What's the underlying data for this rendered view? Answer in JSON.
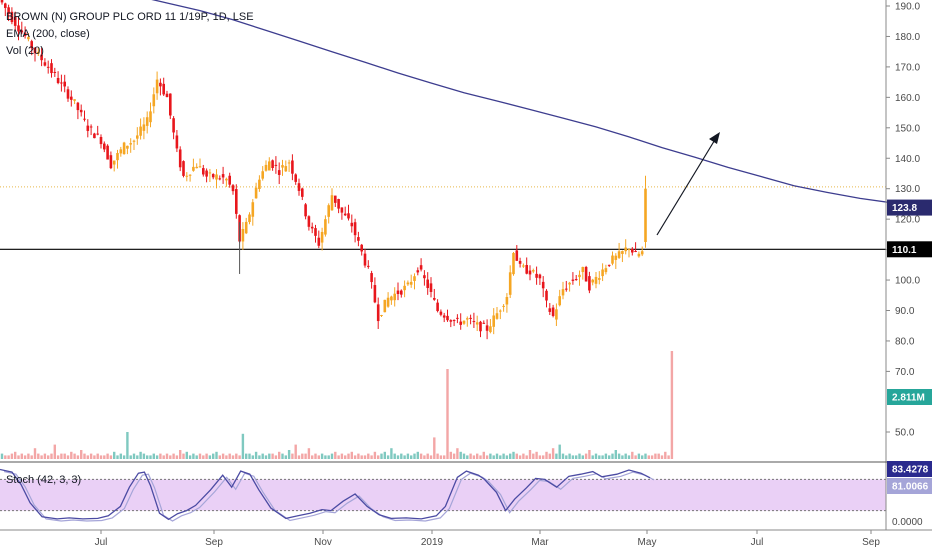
{
  "legend": {
    "title": "BROWN (N) GROUP PLC ORD 11 1/19P, 1D, LSE",
    "ema": "EMA (200, close)",
    "vol": "Vol (20)",
    "stoch": "Stoch (42, 3, 3)"
  },
  "tags": {
    "ema": "123.8",
    "hline": "110.1",
    "volume": "2.811M",
    "stoch_k": "83.4278",
    "stoch_d": "81.0066",
    "stoch_zero": "0.0000"
  },
  "colors": {
    "up": "#f5a623",
    "down": "#e8161c",
    "ema": "#3d3d8f",
    "vol_up": "#7fc9c0",
    "vol_down": "#f3a6a6",
    "stoch_bg": "#e6c8f5",
    "stoch_k": "#4b4ba3",
    "stoch_d": "#a5a5d8",
    "dotted": "#e8b84a",
    "hline": "#000000",
    "arrow": "#131722"
  },
  "chart_data": {
    "type": "candlestick",
    "x_ticks": [
      "Jul",
      "Sep",
      "Nov",
      "2019",
      "Mar",
      "May",
      "Jul",
      "Sep"
    ],
    "price_axis": {
      "ticks": [
        190,
        180,
        170,
        160,
        150,
        140,
        130,
        120,
        110,
        100,
        90,
        80,
        70
      ],
      "tick_labels": [
        "190.0",
        "180.0",
        "170.0",
        "160.0",
        "150.0",
        "140.0",
        "130.0",
        "120.0",
        "110.0",
        "100.0",
        "90.0",
        "80.0",
        "70.0"
      ],
      "range": [
        40,
        193
      ]
    },
    "volume_axis": {
      "ticks": [
        50
      ],
      "tick_labels": [
        "50.0"
      ]
    },
    "stoch_axis": {
      "range": [
        0,
        100
      ],
      "ticks": [
        0
      ],
      "tick_labels": [
        "0.0000"
      ]
    },
    "horizontal_line": 110.1,
    "dotted_line": 130.6,
    "ema_path": [
      [
        0,
        207
      ],
      [
        10,
        203
      ],
      [
        20,
        199
      ],
      [
        30,
        196
      ],
      [
        40,
        193.5
      ],
      [
        50,
        191
      ],
      [
        60,
        188.5
      ],
      [
        70,
        185.5
      ],
      [
        80,
        182
      ],
      [
        90,
        178.5
      ],
      [
        100,
        175
      ],
      [
        110,
        171.5
      ],
      [
        120,
        168
      ],
      [
        130,
        164.7
      ],
      [
        140,
        161.5
      ],
      [
        150,
        158.8
      ],
      [
        160,
        156
      ],
      [
        170,
        153.2
      ],
      [
        180,
        150.3
      ],
      [
        190,
        147
      ],
      [
        200,
        143.5
      ],
      [
        210,
        140.3
      ],
      [
        220,
        137
      ],
      [
        230,
        134
      ],
      [
        240,
        131
      ],
      [
        250,
        128.8
      ],
      [
        260,
        126.8
      ],
      [
        270,
        125.3
      ],
      [
        280,
        124.4
      ],
      [
        288,
        123.8
      ]
    ],
    "ohlc_anchors": [
      [
        0,
        191
      ],
      [
        3,
        186
      ],
      [
        7,
        180
      ],
      [
        10,
        175
      ],
      [
        14,
        170
      ],
      [
        18,
        164
      ],
      [
        22,
        158
      ],
      [
        26,
        150
      ],
      [
        30,
        146
      ],
      [
        33,
        138
      ],
      [
        37,
        144
      ],
      [
        40,
        146
      ],
      [
        44,
        152
      ],
      [
        47,
        166
      ],
      [
        50,
        160
      ],
      [
        53,
        142
      ],
      [
        55,
        134
      ],
      [
        59,
        138
      ],
      [
        62,
        134
      ],
      [
        65,
        134
      ],
      [
        68,
        133
      ],
      [
        70,
        129
      ],
      [
        72,
        113
      ],
      [
        74,
        118
      ],
      [
        76,
        126
      ],
      [
        78,
        134
      ],
      [
        81,
        139
      ],
      [
        84,
        136
      ],
      [
        87,
        139
      ],
      [
        90,
        130
      ],
      [
        93,
        118
      ],
      [
        96,
        112
      ],
      [
        100,
        128
      ],
      [
        103,
        122
      ],
      [
        106,
        118
      ],
      [
        108,
        112
      ],
      [
        111,
        103
      ],
      [
        114,
        88
      ],
      [
        117,
        94
      ],
      [
        120,
        96
      ],
      [
        123,
        98
      ],
      [
        126,
        104
      ],
      [
        129,
        98
      ],
      [
        132,
        90
      ],
      [
        135,
        88
      ],
      [
        138,
        86
      ],
      [
        141,
        87
      ],
      [
        144,
        85
      ],
      [
        147,
        84
      ],
      [
        150,
        89
      ],
      [
        153,
        95
      ],
      [
        155,
        110
      ],
      [
        157,
        104
      ],
      [
        160,
        103
      ],
      [
        163,
        100
      ],
      [
        165,
        92
      ],
      [
        167,
        88
      ],
      [
        170,
        97
      ],
      [
        173,
        100
      ],
      [
        176,
        103
      ],
      [
        178,
        98
      ],
      [
        181,
        102
      ],
      [
        184,
        106
      ],
      [
        187,
        108
      ],
      [
        190,
        111
      ],
      [
        192,
        108
      ],
      [
        194,
        109
      ],
      [
        195,
        130
      ]
    ],
    "volume_heights": [
      3,
      2,
      2,
      3,
      4,
      2,
      3,
      2,
      3,
      2,
      6,
      3,
      2,
      3,
      2,
      3,
      8,
      2,
      3,
      3,
      2,
      4,
      3,
      2,
      5,
      3,
      2,
      3,
      2,
      3,
      2,
      2,
      3,
      2,
      4,
      2,
      3,
      2,
      15,
      2,
      3,
      2,
      4,
      3,
      2,
      2,
      3,
      2,
      3,
      2,
      3,
      2,
      3,
      2,
      5,
      3,
      4,
      2,
      3,
      2,
      3,
      2,
      3,
      2,
      3,
      4,
      2,
      3,
      2,
      3,
      2,
      3,
      2,
      14,
      3,
      3,
      2,
      4,
      2,
      3,
      2,
      3,
      3,
      2,
      4,
      3,
      2,
      5,
      3,
      8,
      2,
      3,
      3,
      6,
      2,
      3,
      2,
      3,
      2,
      2,
      3,
      4,
      2,
      3,
      2,
      3,
      4,
      2,
      3,
      2,
      2,
      3,
      2,
      4,
      2,
      3,
      4,
      2,
      6,
      3,
      2,
      3,
      2,
      3,
      2,
      3,
      4,
      3,
      2,
      3,
      2,
      12,
      3,
      2,
      2,
      50,
      4,
      3,
      6,
      4,
      3,
      2,
      3,
      2,
      3,
      2,
      4,
      2,
      3,
      2,
      3,
      2,
      3,
      2,
      3,
      4,
      3,
      2,
      3,
      2,
      5,
      3,
      4,
      2,
      2,
      4,
      3,
      6,
      3,
      8,
      3,
      2,
      3,
      2,
      2,
      3,
      2,
      3,
      5,
      2,
      3,
      2,
      2,
      3,
      2,
      3,
      5,
      3,
      2,
      3,
      2,
      4,
      2,
      3,
      2,
      3,
      2,
      2,
      3,
      3,
      2,
      4,
      2,
      60
    ],
    "stoch_k": [
      [
        0,
        99
      ],
      [
        8,
        94
      ],
      [
        14,
        70
      ],
      [
        20,
        35
      ],
      [
        28,
        8
      ],
      [
        38,
        4
      ],
      [
        46,
        6
      ],
      [
        55,
        4
      ],
      [
        65,
        5
      ],
      [
        72,
        10
      ],
      [
        80,
        28
      ],
      [
        86,
        65
      ],
      [
        92,
        92
      ],
      [
        96,
        94
      ],
      [
        100,
        68
      ],
      [
        106,
        15
      ],
      [
        112,
        3
      ],
      [
        118,
        14
      ],
      [
        124,
        20
      ],
      [
        130,
        30
      ],
      [
        140,
        60
      ],
      [
        148,
        88
      ],
      [
        154,
        65
      ],
      [
        160,
        96
      ],
      [
        166,
        90
      ],
      [
        172,
        60
      ],
      [
        180,
        25
      ],
      [
        190,
        5
      ],
      [
        198,
        10
      ],
      [
        206,
        15
      ],
      [
        214,
        22
      ],
      [
        220,
        20
      ],
      [
        228,
        38
      ],
      [
        236,
        52
      ],
      [
        244,
        28
      ],
      [
        252,
        12
      ],
      [
        260,
        5
      ],
      [
        270,
        6
      ],
      [
        280,
        4
      ],
      [
        290,
        10
      ],
      [
        296,
        28
      ],
      [
        304,
        84
      ],
      [
        310,
        96
      ],
      [
        318,
        88
      ],
      [
        322,
        80
      ],
      [
        330,
        55
      ],
      [
        336,
        20
      ],
      [
        342,
        42
      ],
      [
        350,
        64
      ],
      [
        356,
        82
      ],
      [
        362,
        80
      ],
      [
        370,
        65
      ],
      [
        378,
        86
      ],
      [
        386,
        90
      ],
      [
        394,
        95
      ],
      [
        400,
        85
      ],
      [
        410,
        90
      ],
      [
        418,
        98
      ],
      [
        426,
        92
      ],
      [
        432,
        83
      ]
    ]
  }
}
